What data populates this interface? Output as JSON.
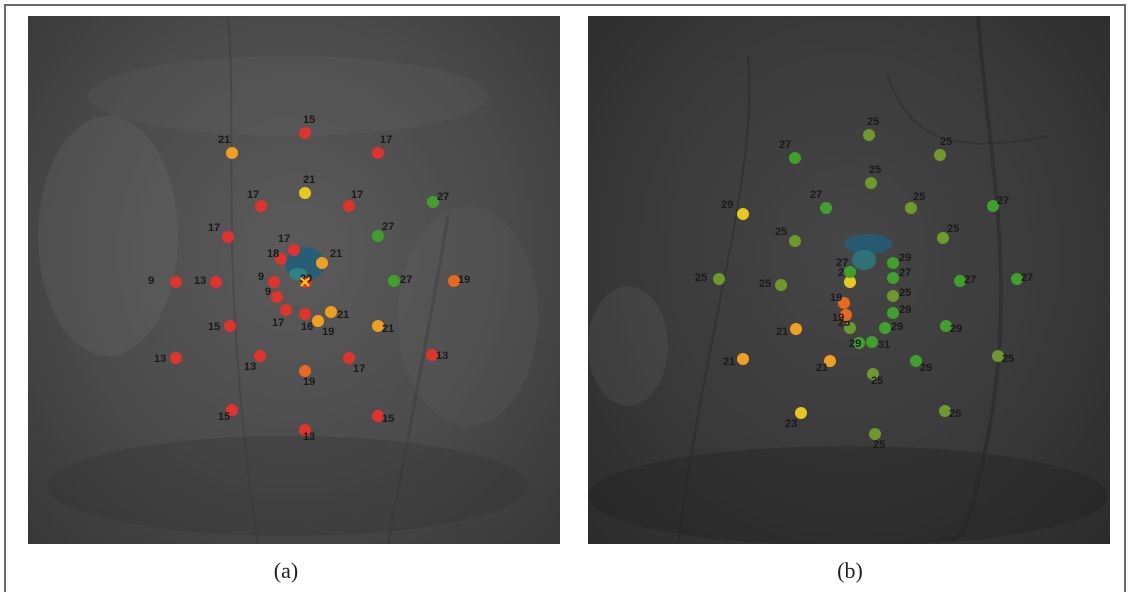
{
  "colors": {
    "red": "#e0332b",
    "orange": "#e8681e",
    "amber": "#f0a020",
    "yellow": "#e6c81e",
    "green": "#3fa02c",
    "olive": "#6e9a2c",
    "fixation": "#1f5f7a"
  },
  "panels": [
    {
      "id": "a",
      "caption": "(a)",
      "points": [
        {
          "label": "15",
          "color": "red"
        },
        {
          "label": "17",
          "color": "red"
        },
        {
          "label": "27",
          "color": "green"
        },
        {
          "label": "19",
          "color": "orange"
        },
        {
          "label": "13",
          "color": "red"
        },
        {
          "label": "15",
          "color": "red"
        },
        {
          "label": "13",
          "color": "red"
        },
        {
          "label": "15",
          "color": "red"
        },
        {
          "label": "13",
          "color": "red"
        },
        {
          "label": "9",
          "color": "red"
        },
        {
          "label": "21",
          "color": "amber"
        },
        {
          "label": "17",
          "color": "red"
        },
        {
          "label": "27",
          "color": "green"
        },
        {
          "label": "27",
          "color": "green"
        },
        {
          "label": "21",
          "color": "amber"
        },
        {
          "label": "17",
          "color": "red"
        },
        {
          "label": "19",
          "color": "orange"
        },
        {
          "label": "13",
          "color": "red"
        },
        {
          "label": "15",
          "color": "red"
        },
        {
          "label": "13",
          "color": "red"
        },
        {
          "label": "17",
          "color": "red"
        },
        {
          "label": "21",
          "color": "yellow"
        },
        {
          "label": "17",
          "color": "red"
        },
        {
          "label": "21",
          "color": "amber"
        },
        {
          "label": "19",
          "color": "amber"
        },
        {
          "label": "16",
          "color": "red"
        },
        {
          "label": "17",
          "color": "red"
        },
        {
          "label": "9",
          "color": "red"
        },
        {
          "label": "9",
          "color": "red"
        },
        {
          "label": "18",
          "color": "red"
        },
        {
          "label": "17",
          "color": "red"
        },
        {
          "label": "21",
          "color": "amber"
        },
        {
          "label": "20",
          "color": "red"
        }
      ]
    },
    {
      "id": "b",
      "caption": "(b)",
      "points": [
        {
          "label": "25",
          "color": "olive"
        },
        {
          "label": "25",
          "color": "olive"
        },
        {
          "label": "27",
          "color": "green"
        },
        {
          "label": "27",
          "color": "green"
        },
        {
          "label": "25",
          "color": "olive"
        },
        {
          "label": "25",
          "color": "olive"
        },
        {
          "label": "25",
          "color": "olive"
        },
        {
          "label": "23",
          "color": "yellow"
        },
        {
          "label": "21",
          "color": "amber"
        },
        {
          "label": "25",
          "color": "olive"
        },
        {
          "label": "27",
          "color": "green"
        },
        {
          "label": "29",
          "color": "yellow"
        },
        {
          "label": "25",
          "color": "olive"
        },
        {
          "label": "25",
          "color": "olive"
        },
        {
          "label": "25",
          "color": "olive"
        },
        {
          "label": "27",
          "color": "green"
        },
        {
          "label": "29",
          "color": "green"
        },
        {
          "label": "29",
          "color": "green"
        },
        {
          "label": "25",
          "color": "olive"
        },
        {
          "label": "21",
          "color": "amber"
        },
        {
          "label": "21",
          "color": "amber"
        },
        {
          "label": "25",
          "color": "olive"
        },
        {
          "label": "25",
          "color": "olive"
        },
        {
          "label": "27",
          "color": "green"
        },
        {
          "label": "29",
          "color": "green"
        },
        {
          "label": "27",
          "color": "green"
        },
        {
          "label": "25",
          "color": "olive"
        },
        {
          "label": "29",
          "color": "green"
        },
        {
          "label": "29",
          "color": "green"
        },
        {
          "label": "31",
          "color": "green"
        },
        {
          "label": "29",
          "color": "green"
        },
        {
          "label": "25",
          "color": "olive"
        },
        {
          "label": "19",
          "color": "orange"
        },
        {
          "label": "19",
          "color": "orange"
        },
        {
          "label": "21",
          "color": "yellow"
        },
        {
          "label": "27",
          "color": "green"
        }
      ]
    }
  ]
}
